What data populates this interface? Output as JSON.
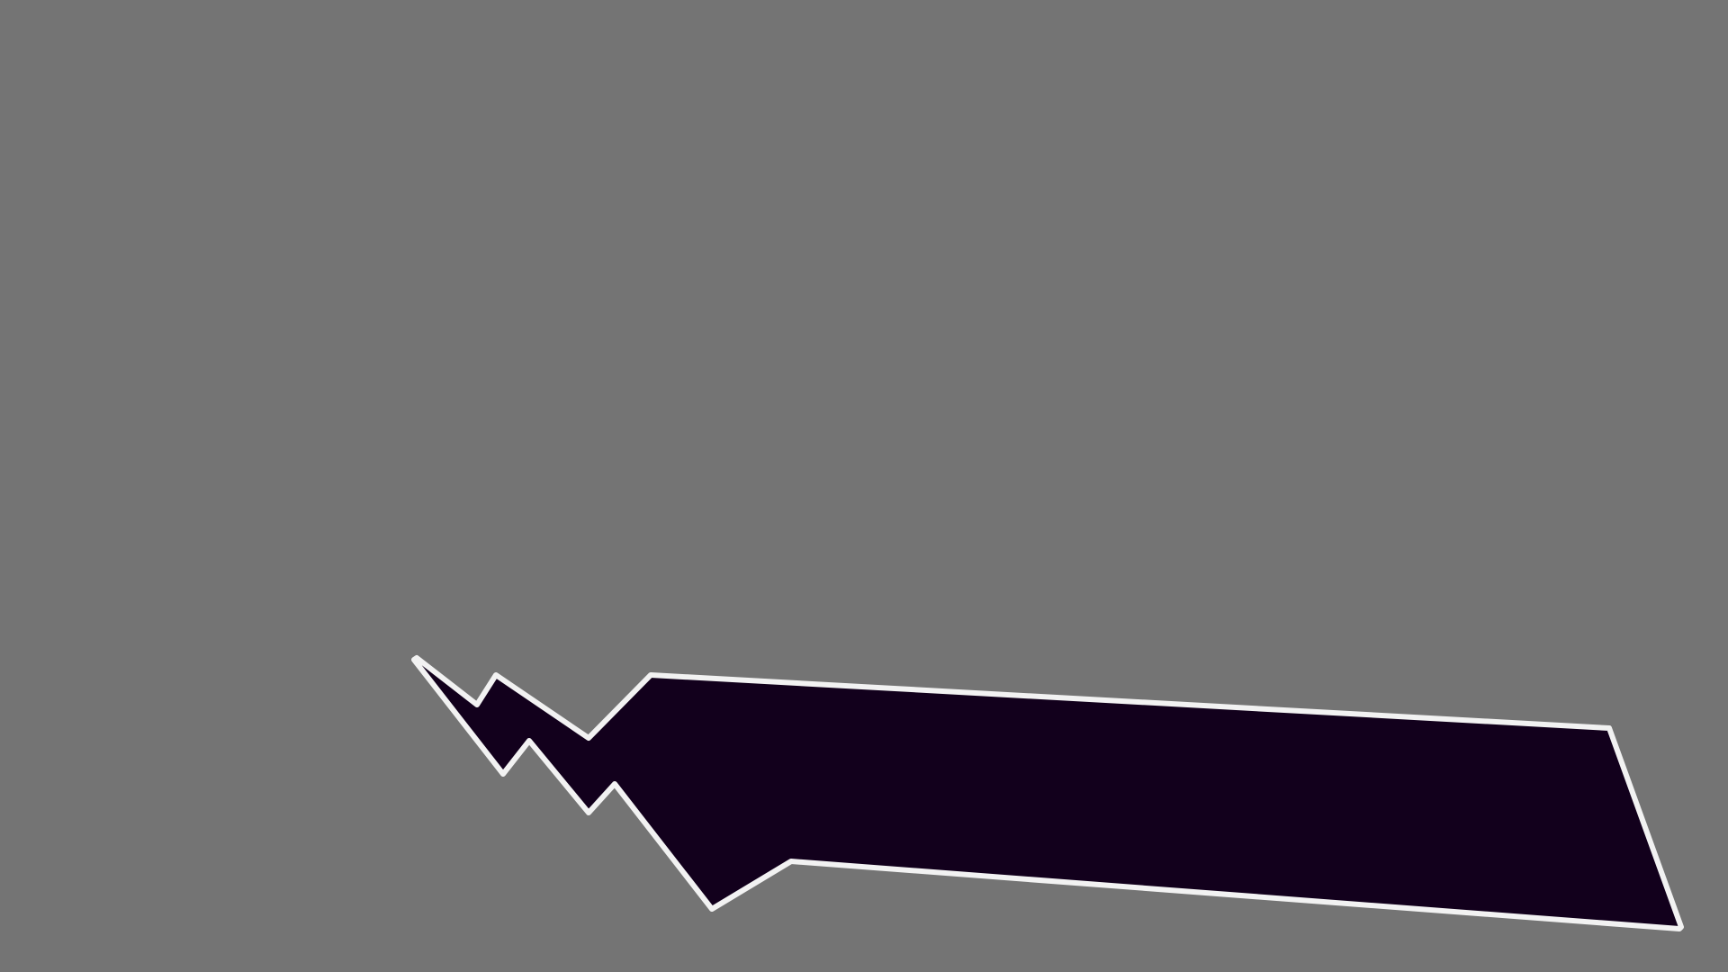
{
  "scene": {
    "background_color": "#747474",
    "shape": {
      "name": "jagged-polygon",
      "fill_color": "#12001C",
      "stroke_color": "#F2F2F2"
    }
  }
}
